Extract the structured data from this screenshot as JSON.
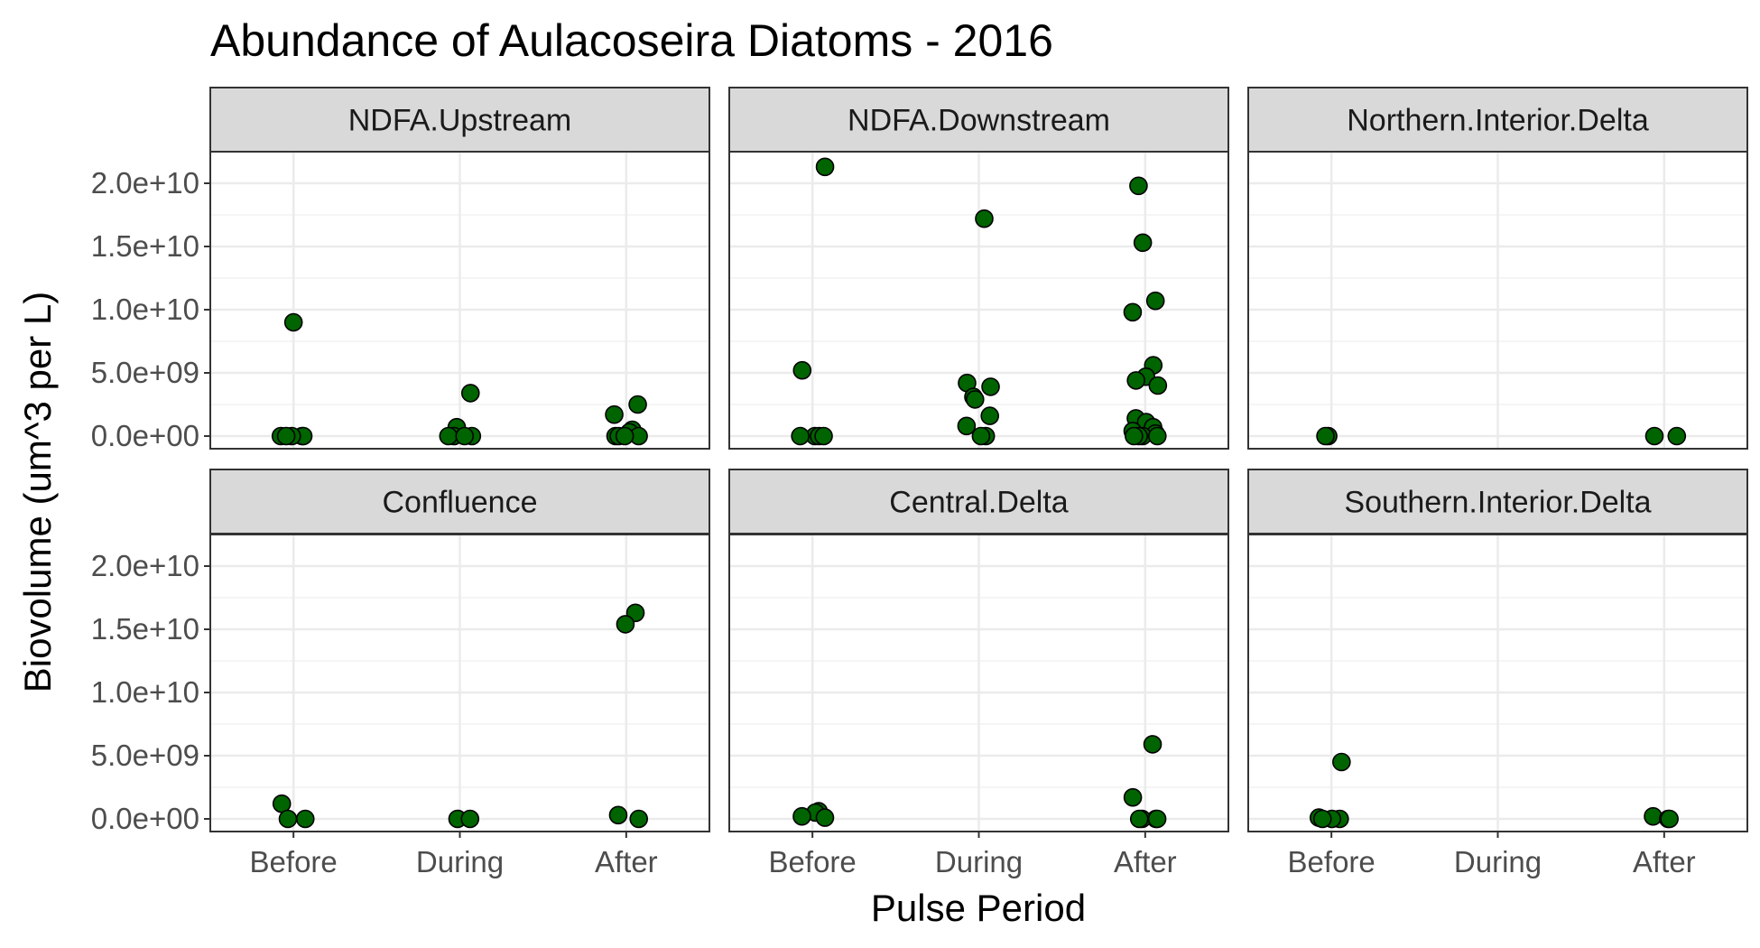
{
  "chart_data": {
    "type": "scatter",
    "title": "Abundance of Aulacoseira Diatoms - 2016",
    "xlabel": "Pulse Period",
    "ylabel": "Biovolume (um^3 per L)",
    "categories": [
      "Before",
      "During",
      "After"
    ],
    "ylim": [
      -1000000000,
      22500000000
    ],
    "yticks": [
      0,
      5000000000,
      10000000000,
      15000000000,
      20000000000
    ],
    "ytick_labels": [
      "0.0e+00",
      "5.0e+09",
      "1.0e+10",
      "1.5e+10",
      "2.0e+10"
    ],
    "grid": true,
    "point_fill": "#006400",
    "point_stroke": "#000000",
    "facets": [
      {
        "name": "NDFA.Upstream",
        "points": [
          {
            "x": "Before",
            "y": 9000000000
          },
          {
            "x": "Before",
            "y": 0
          },
          {
            "x": "Before",
            "y": 0
          },
          {
            "x": "Before",
            "y": 0
          },
          {
            "x": "Before",
            "y": 0
          },
          {
            "x": "Before",
            "y": 0
          },
          {
            "x": "During",
            "y": 3400000000
          },
          {
            "x": "During",
            "y": 700000000
          },
          {
            "x": "During",
            "y": 0
          },
          {
            "x": "During",
            "y": 0
          },
          {
            "x": "During",
            "y": 0
          },
          {
            "x": "During",
            "y": 0
          },
          {
            "x": "After",
            "y": 2500000000
          },
          {
            "x": "After",
            "y": 1700000000
          },
          {
            "x": "After",
            "y": 500000000
          },
          {
            "x": "After",
            "y": 300000000
          },
          {
            "x": "After",
            "y": 0
          },
          {
            "x": "After",
            "y": 0
          },
          {
            "x": "After",
            "y": 0
          },
          {
            "x": "After",
            "y": 0
          }
        ]
      },
      {
        "name": "NDFA.Downstream",
        "points": [
          {
            "x": "Before",
            "y": 21300000000
          },
          {
            "x": "Before",
            "y": 5200000000
          },
          {
            "x": "Before",
            "y": 0
          },
          {
            "x": "Before",
            "y": 0
          },
          {
            "x": "Before",
            "y": 0
          },
          {
            "x": "Before",
            "y": 0
          },
          {
            "x": "During",
            "y": 17200000000
          },
          {
            "x": "During",
            "y": 4200000000
          },
          {
            "x": "During",
            "y": 3900000000
          },
          {
            "x": "During",
            "y": 3100000000
          },
          {
            "x": "During",
            "y": 2900000000
          },
          {
            "x": "During",
            "y": 1600000000
          },
          {
            "x": "During",
            "y": 800000000
          },
          {
            "x": "During",
            "y": 0
          },
          {
            "x": "During",
            "y": 0
          },
          {
            "x": "After",
            "y": 19800000000
          },
          {
            "x": "After",
            "y": 15300000000
          },
          {
            "x": "After",
            "y": 10700000000
          },
          {
            "x": "After",
            "y": 9800000000
          },
          {
            "x": "After",
            "y": 5600000000
          },
          {
            "x": "After",
            "y": 4700000000
          },
          {
            "x": "After",
            "y": 4400000000
          },
          {
            "x": "After",
            "y": 4000000000
          },
          {
            "x": "After",
            "y": 1400000000
          },
          {
            "x": "After",
            "y": 1100000000
          },
          {
            "x": "After",
            "y": 700000000
          },
          {
            "x": "After",
            "y": 400000000
          },
          {
            "x": "After",
            "y": 200000000
          },
          {
            "x": "After",
            "y": 0
          },
          {
            "x": "After",
            "y": 0
          },
          {
            "x": "After",
            "y": 0
          },
          {
            "x": "After",
            "y": 0
          }
        ]
      },
      {
        "name": "Northern.Interior.Delta",
        "points": [
          {
            "x": "Before",
            "y": 0
          },
          {
            "x": "Before",
            "y": 0
          },
          {
            "x": "After",
            "y": 0
          },
          {
            "x": "After",
            "y": 0
          }
        ]
      },
      {
        "name": "Confluence",
        "points": [
          {
            "x": "Before",
            "y": 1200000000
          },
          {
            "x": "Before",
            "y": 0
          },
          {
            "x": "Before",
            "y": 0
          },
          {
            "x": "During",
            "y": 0
          },
          {
            "x": "During",
            "y": 0
          },
          {
            "x": "After",
            "y": 16300000000
          },
          {
            "x": "After",
            "y": 15400000000
          },
          {
            "x": "After",
            "y": 300000000
          },
          {
            "x": "After",
            "y": 0
          }
        ]
      },
      {
        "name": "Central.Delta",
        "points": [
          {
            "x": "Before",
            "y": 600000000
          },
          {
            "x": "Before",
            "y": 500000000
          },
          {
            "x": "Before",
            "y": 200000000
          },
          {
            "x": "Before",
            "y": 100000000
          },
          {
            "x": "After",
            "y": 5900000000
          },
          {
            "x": "After",
            "y": 1700000000
          },
          {
            "x": "After",
            "y": 0
          },
          {
            "x": "After",
            "y": 0
          },
          {
            "x": "After",
            "y": 0
          },
          {
            "x": "After",
            "y": 0
          }
        ]
      },
      {
        "name": "Southern.Interior.Delta",
        "points": [
          {
            "x": "Before",
            "y": 4500000000
          },
          {
            "x": "Before",
            "y": 100000000
          },
          {
            "x": "Before",
            "y": 0
          },
          {
            "x": "Before",
            "y": 0
          },
          {
            "x": "Before",
            "y": 0
          },
          {
            "x": "After",
            "y": 200000000
          },
          {
            "x": "After",
            "y": 0
          },
          {
            "x": "After",
            "y": 0
          }
        ]
      }
    ]
  }
}
